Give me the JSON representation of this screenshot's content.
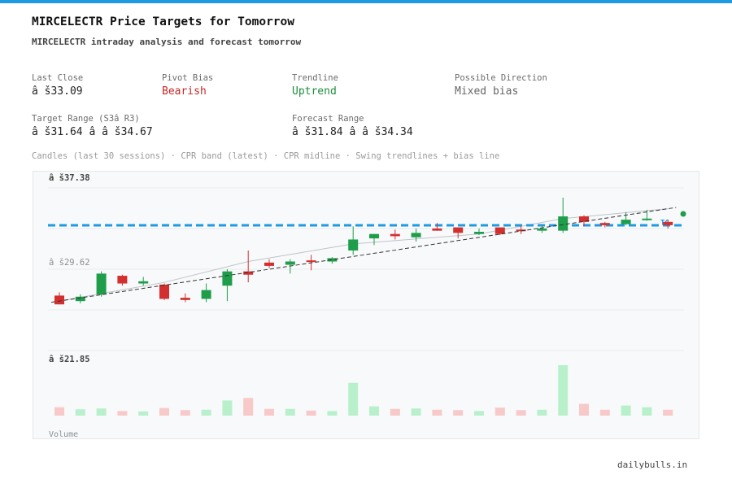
{
  "header": {
    "title": "MIRCELECTR Price Targets for Tomorrow",
    "subtitle": "MIRCELECTR intraday analysis and forecast tomorrow"
  },
  "stats": {
    "last_close_label": "Last Close",
    "last_close_value": "â š33.09",
    "pivot_bias_label": "Pivot Bias",
    "pivot_bias_value": "Bearish",
    "trendline_label": "Trendline",
    "trendline_value": "Uptrend",
    "direction_label": "Possible Direction",
    "direction_value": "Mixed bias",
    "target_range_label": "Target Range (S3â  R3)",
    "target_range_value": "â š31.64 â   â š34.67",
    "forecast_range_label": "Forecast Range",
    "forecast_range_value": "â š31.84 â   â š34.34"
  },
  "caption": "Candles (last 30 sessions) · CPR band (latest) · CPR midline · Swing trendlines + bias line",
  "footer": "dailybulls.in",
  "colors": {
    "bull": "#1e9e4a",
    "bear": "#d32f2f",
    "vol_bull": "#b9f0cc",
    "vol_bear": "#f8c9c9",
    "cpr": "#1e9be0",
    "trend": "#333333",
    "accent": "#1e9be0"
  },
  "chart_data": {
    "type": "candlestick",
    "y_tick_labels": [
      "â š37.38",
      "â š29.62",
      "â š21.85"
    ],
    "y_ticks": [
      37.38,
      29.62,
      21.85
    ],
    "ylim": [
      21.85,
      37.38
    ],
    "volume_label": "Volume",
    "cpr_label": "TC",
    "cpr_level": 33.09,
    "candles": [
      {
        "o": 26.7,
        "h": 27.0,
        "l": 25.9,
        "c": 25.9
      },
      {
        "o": 26.2,
        "h": 26.8,
        "l": 26.0,
        "c": 26.6
      },
      {
        "o": 26.8,
        "h": 28.9,
        "l": 26.6,
        "c": 28.7
      },
      {
        "o": 28.5,
        "h": 28.6,
        "l": 27.6,
        "c": 27.8
      },
      {
        "o": 27.8,
        "h": 28.4,
        "l": 27.6,
        "c": 28.0
      },
      {
        "o": 27.7,
        "h": 27.8,
        "l": 26.3,
        "c": 26.4
      },
      {
        "o": 26.5,
        "h": 26.9,
        "l": 26.1,
        "c": 26.3
      },
      {
        "o": 26.4,
        "h": 27.8,
        "l": 26.1,
        "c": 27.2
      },
      {
        "o": 27.6,
        "h": 29.1,
        "l": 26.2,
        "c": 28.9
      },
      {
        "o": 28.9,
        "h": 30.8,
        "l": 27.9,
        "c": 28.6
      },
      {
        "o": 29.7,
        "h": 30.0,
        "l": 29.2,
        "c": 29.4
      },
      {
        "o": 29.5,
        "h": 30.0,
        "l": 28.7,
        "c": 29.8
      },
      {
        "o": 29.9,
        "h": 30.4,
        "l": 29.0,
        "c": 29.8
      },
      {
        "o": 29.8,
        "h": 30.2,
        "l": 29.6,
        "c": 30.1
      },
      {
        "o": 30.8,
        "h": 33.0,
        "l": 30.4,
        "c": 31.8
      },
      {
        "o": 31.9,
        "h": 32.3,
        "l": 31.3,
        "c": 32.3
      },
      {
        "o": 32.3,
        "h": 32.7,
        "l": 31.8,
        "c": 32.1
      },
      {
        "o": 32.0,
        "h": 32.8,
        "l": 31.6,
        "c": 32.4
      },
      {
        "o": 32.8,
        "h": 33.3,
        "l": 32.6,
        "c": 32.6
      },
      {
        "o": 32.9,
        "h": 32.9,
        "l": 31.9,
        "c": 32.4
      },
      {
        "o": 32.3,
        "h": 32.8,
        "l": 32.2,
        "c": 32.5
      },
      {
        "o": 32.9,
        "h": 32.9,
        "l": 32.2,
        "c": 32.3
      },
      {
        "o": 32.7,
        "h": 33.0,
        "l": 32.3,
        "c": 32.6
      },
      {
        "o": 32.6,
        "h": 33.1,
        "l": 32.4,
        "c": 32.8
      },
      {
        "o": 32.6,
        "h": 35.6,
        "l": 32.4,
        "c": 33.9
      },
      {
        "o": 33.9,
        "h": 34.0,
        "l": 33.0,
        "c": 33.4
      },
      {
        "o": 33.3,
        "h": 33.4,
        "l": 32.9,
        "c": 33.1
      },
      {
        "o": 33.2,
        "h": 34.3,
        "l": 33.1,
        "c": 33.6
      },
      {
        "o": 33.7,
        "h": 34.5,
        "l": 33.5,
        "c": 33.7
      },
      {
        "o": 33.4,
        "h": 33.6,
        "l": 32.8,
        "c": 33.1
      }
    ],
    "volume": [
      1.0,
      0.75,
      0.85,
      0.55,
      0.5,
      0.9,
      0.65,
      0.7,
      1.8,
      2.1,
      0.8,
      0.8,
      0.6,
      0.55,
      3.9,
      1.1,
      0.8,
      0.85,
      0.7,
      0.65,
      0.55,
      0.95,
      0.65,
      0.7,
      6.0,
      1.4,
      0.7,
      1.2,
      1.0,
      0.7
    ],
    "trendline": [
      [
        0,
        26.2
      ],
      [
        29,
        34.6
      ]
    ],
    "swing_line": [
      [
        0,
        26.2
      ],
      [
        5,
        27.9
      ],
      [
        9,
        29.8
      ],
      [
        14,
        31.4
      ],
      [
        20,
        32.3
      ],
      [
        24,
        33.7
      ],
      [
        29,
        34.6
      ]
    ]
  }
}
